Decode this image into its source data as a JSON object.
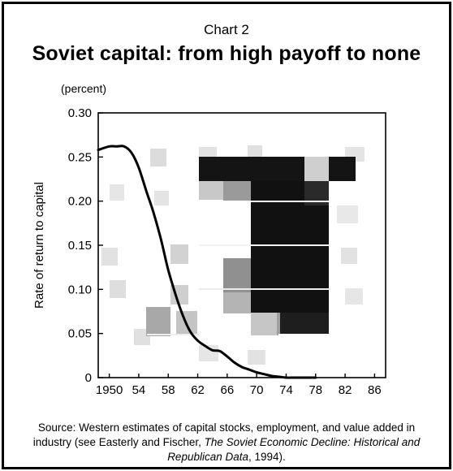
{
  "header": {
    "chart_number": "Chart 2",
    "title": "Soviet capital: from high payoff to none",
    "unit_note": "(percent)"
  },
  "source": {
    "prefix": "Source: Western estimates of capital stocks, employment, and value added in industry (see Easterly and Fischer, ",
    "italic": "The Soviet Economic Decline: Historical and Republican Data",
    "suffix": ", 1994)."
  },
  "chart_data": {
    "type": "line",
    "title": "Soviet capital: from high payoff to none",
    "xlabel": "",
    "ylabel": "Rate of return to capital",
    "xlim": [
      1948.5,
      1888
    ],
    "x_ticks": [
      1950,
      1954,
      1958,
      1962,
      1966,
      1970,
      1974,
      1978,
      1982,
      1986
    ],
    "x_tick_labels": [
      "1950",
      "54",
      "58",
      "62",
      "66",
      "70",
      "74",
      "78",
      "82",
      "86"
    ],
    "ylim": [
      0,
      0.3
    ],
    "y_ticks": [
      0,
      0.05,
      0.1,
      0.15,
      0.2,
      0.25,
      0.3
    ],
    "y_tick_labels": [
      "0",
      "0.05",
      "0.10",
      "0.15",
      "0.20",
      "0.25",
      "0.30"
    ],
    "grid": false,
    "series": [
      {
        "color": "#000000",
        "x": [
          1948.5,
          1950,
          1951,
          1952,
          1953,
          1954,
          1955,
          1956,
          1957,
          1958,
          1959,
          1960,
          1961,
          1962,
          1963,
          1964,
          1965,
          1966,
          1967,
          1968,
          1969,
          1970,
          1971,
          1972,
          1973,
          1974,
          1975,
          1976,
          1977,
          1978
        ],
        "y": [
          0.258,
          0.262,
          0.262,
          0.262,
          0.255,
          0.238,
          0.212,
          0.187,
          0.157,
          0.122,
          0.094,
          0.07,
          0.052,
          0.042,
          0.036,
          0.031,
          0.03,
          0.024,
          0.017,
          0.012,
          0.009,
          0.006,
          0.004,
          0.002,
          0.001,
          0.0,
          0.0,
          0.0,
          0.0,
          0.0
        ]
      }
    ]
  },
  "colors": {
    "line": "#000000",
    "border": "#000000",
    "background_texture": "#c8c8c8",
    "dark_block": "#111111"
  }
}
